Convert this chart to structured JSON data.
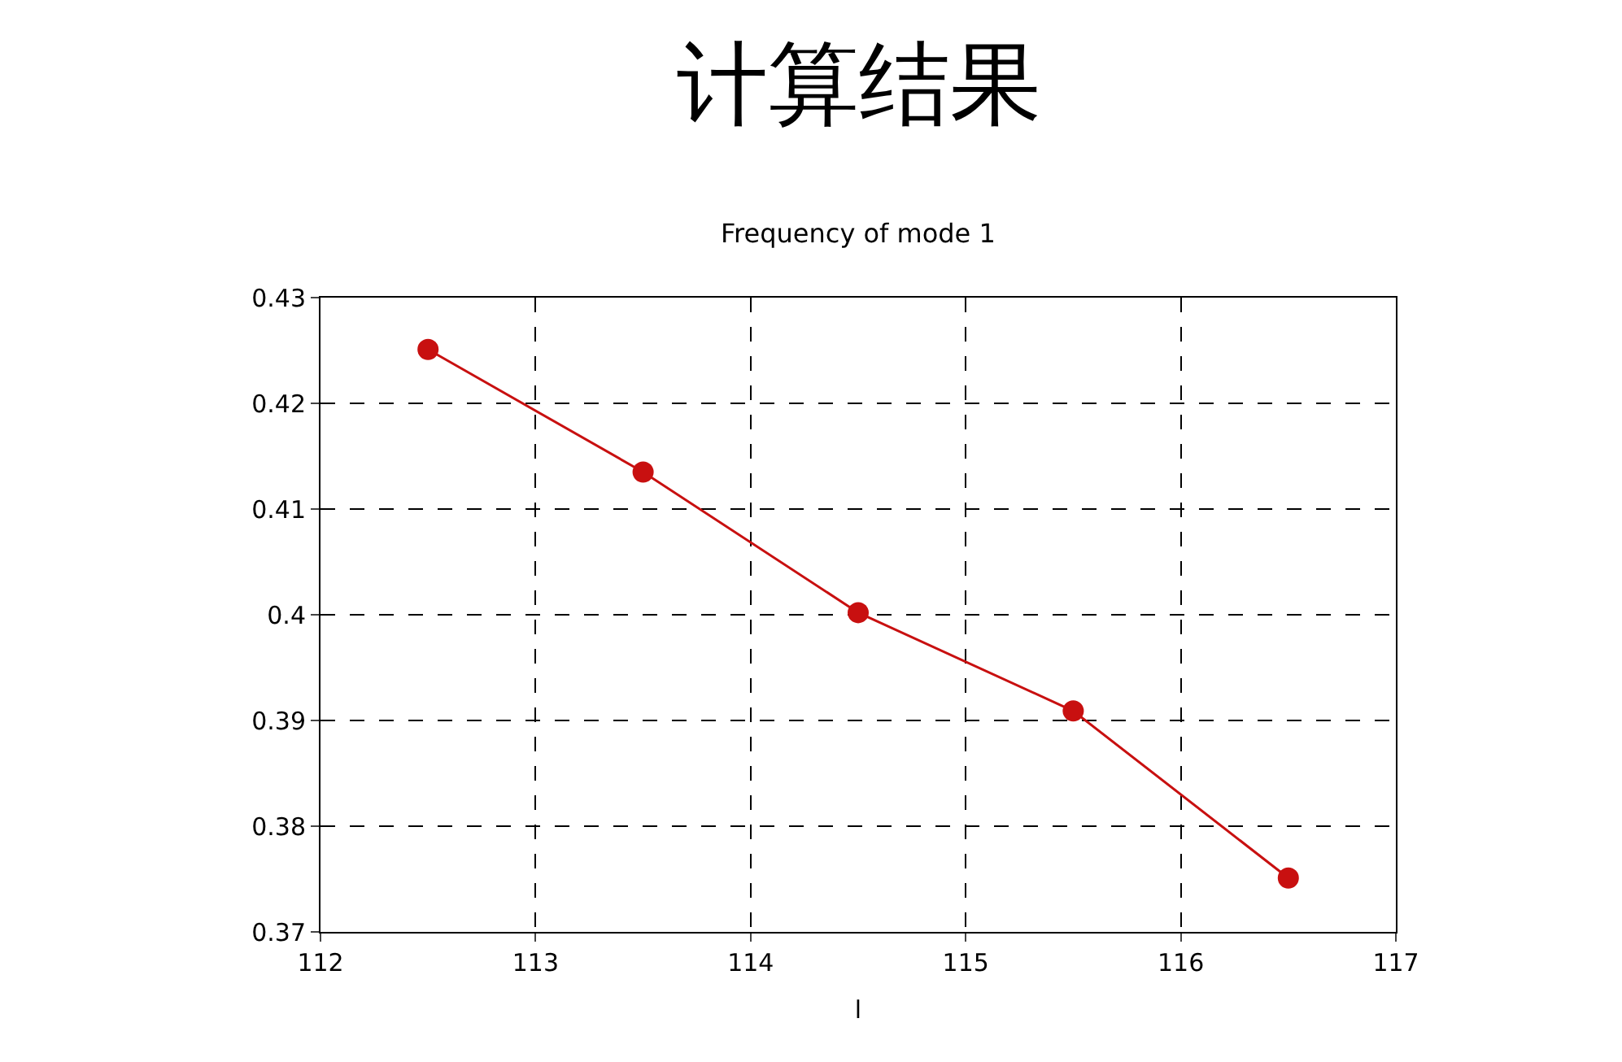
{
  "chart_data": {
    "type": "line",
    "title": "计算结果",
    "subtitle": "Frequency of mode 1",
    "xlabel": "l",
    "x": [
      112.5,
      113.5,
      114.5,
      115.5,
      116.5
    ],
    "series": [
      {
        "color": "#c81010",
        "values": [
          0.4251,
          0.4135,
          0.4002,
          0.3909,
          0.3751
        ]
      }
    ],
    "xlim": [
      112,
      117
    ],
    "xticks": [
      112,
      113,
      114,
      115,
      116,
      117
    ],
    "ylim": [
      0.37,
      0.43
    ],
    "yticks": [
      0.37,
      0.38,
      0.39,
      0.4,
      0.41,
      0.42,
      0.43
    ],
    "grid": true,
    "marker": "circle",
    "line_style": "solid",
    "legend": false
  }
}
